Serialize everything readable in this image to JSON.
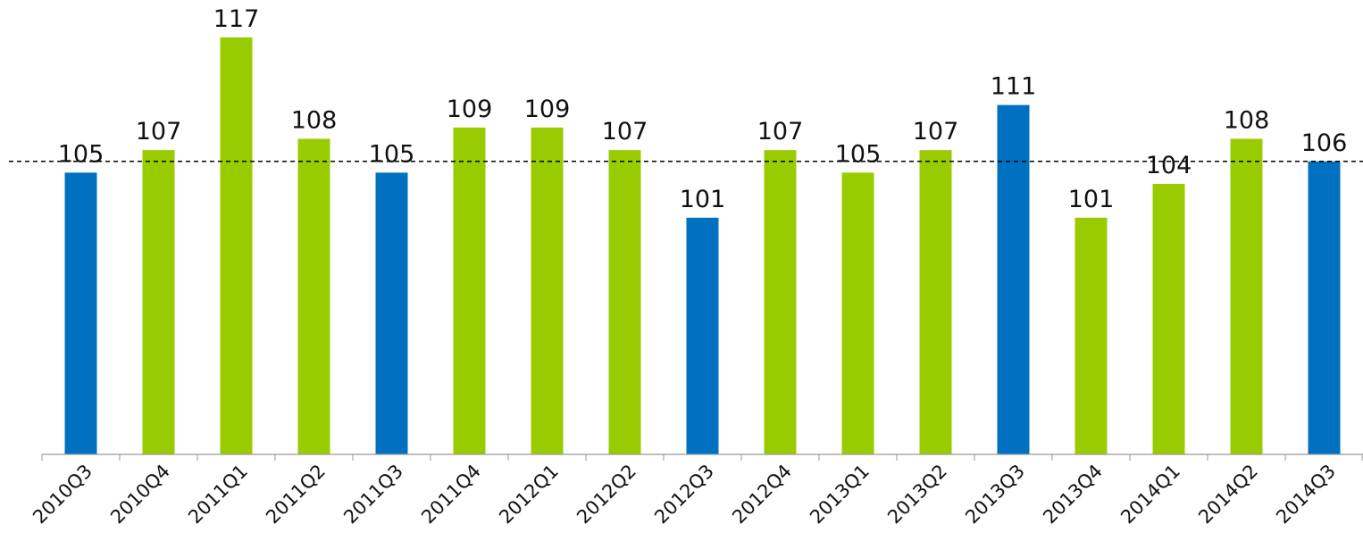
{
  "chart_data": {
    "type": "bar",
    "categories": [
      "2010Q3",
      "2010Q4",
      "2011Q1",
      "2011Q2",
      "2011Q3",
      "2011Q4",
      "2012Q1",
      "2012Q2",
      "2012Q3",
      "2012Q4",
      "2013Q1",
      "2013Q2",
      "2013Q3",
      "2013Q4",
      "2014Q1",
      "2014Q2",
      "2014Q3"
    ],
    "values": [
      105,
      107,
      117,
      108,
      105,
      109,
      109,
      107,
      101,
      107,
      105,
      107,
      111,
      101,
      104,
      108,
      106
    ],
    "highlight_categories": [
      "2010Q3",
      "2011Q3",
      "2012Q3",
      "2013Q3",
      "2014Q3"
    ],
    "colors": {
      "highlight": "#0070C0",
      "default": "#99CC00",
      "reference_line": "#000000"
    },
    "reference_line": {
      "value": 106,
      "style": "dashed"
    },
    "ylim": [
      80,
      120
    ],
    "title": "",
    "xlabel": "",
    "ylabel": "",
    "grid": false,
    "legend": "none",
    "data_labels": true
  }
}
